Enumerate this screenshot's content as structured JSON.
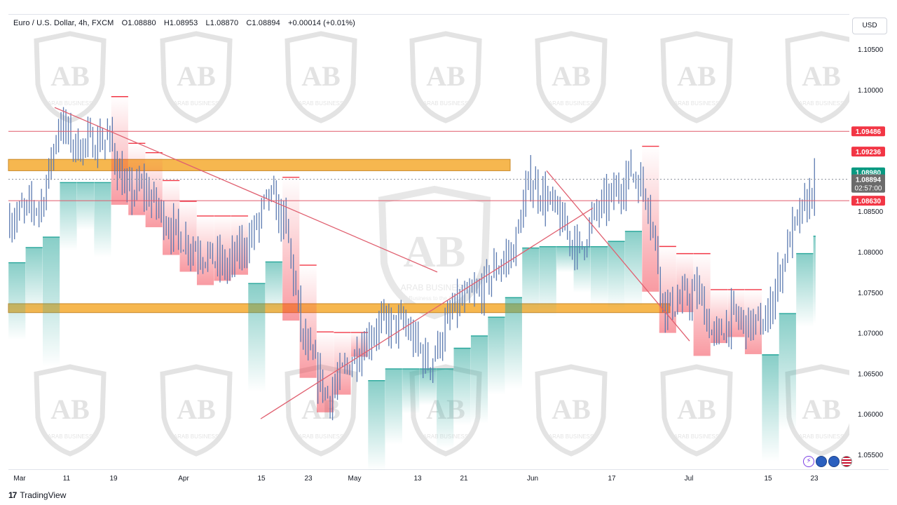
{
  "legend": {
    "symbol": "Euro / U.S. Dollar, 4h, FXCM",
    "open": "O1.08880",
    "high": "H1.08953",
    "low": "L1.08870",
    "close": "C1.08894",
    "change": "+0.00014 (+0.01%)"
  },
  "currency_button": "USD",
  "branding": {
    "tradingview": "TradingView",
    "tv_mark": "17"
  },
  "watermark": {
    "text": "ARAB BUSINESS",
    "subtext": "Business to the Arab"
  },
  "colors": {
    "candle": "#5b7ab0",
    "support_zone": "#f6b74f",
    "resistance_line": "#e05a6a",
    "trend_line": "#e06070",
    "band_bull": "#26a69a",
    "band_bear": "#f23645",
    "last_price_bg": "#6b6b6b"
  },
  "chart_data": {
    "type": "candlestick",
    "symbol": "EURUSD",
    "timeframe": "4h",
    "ylim": [
      1.0545,
      1.1075
    ],
    "x_ticks": [
      "Mar",
      "11",
      "19",
      "Apr",
      "15",
      "23",
      "May",
      "13",
      "21",
      "Jun",
      "17",
      "Jul",
      "15",
      "23"
    ],
    "y_ticks": [
      "1.10500",
      "1.10000",
      "1.09500",
      "1.09000",
      "1.08500",
      "1.08000",
      "1.07500",
      "1.07000",
      "1.06500",
      "1.06000",
      "1.05500"
    ],
    "y_tick_values": [
      1.105,
      1.1,
      1.095,
      1.09,
      1.085,
      1.08,
      1.075,
      1.07,
      1.065,
      1.06,
      1.055
    ],
    "price_path_t": [
      0,
      0.04,
      0.06,
      0.08,
      0.12,
      0.14,
      0.16,
      0.2,
      0.23,
      0.26,
      0.29,
      0.31,
      0.33,
      0.35,
      0.38,
      0.41,
      0.44,
      0.47,
      0.5,
      0.53,
      0.56,
      0.58,
      0.6,
      0.62,
      0.65,
      0.66,
      0.68,
      0.69,
      0.7,
      0.72,
      0.74,
      0.76,
      0.78,
      0.8,
      0.82,
      0.84,
      0.86,
      0.88,
      0.9,
      0.91,
      0.93,
      0.94,
      0.95,
      0.96
    ],
    "price_path_y": [
      1.084,
      1.086,
      1.096,
      1.093,
      1.094,
      1.087,
      1.088,
      1.082,
      1.08,
      1.078,
      1.082,
      1.087,
      1.083,
      1.069,
      1.062,
      1.067,
      1.071,
      1.071,
      1.066,
      1.073,
      1.075,
      1.078,
      1.08,
      1.089,
      1.085,
      1.083,
      1.08,
      1.083,
      1.085,
      1.087,
      1.09,
      1.087,
      1.073,
      1.074,
      1.075,
      1.069,
      1.072,
      1.071,
      1.071,
      1.075,
      1.082,
      1.084,
      1.086,
      1.089
    ],
    "levels": [
      {
        "name": "resistance",
        "value": 1.09486,
        "label": "1.09486"
      },
      {
        "name": "level-2",
        "value": 1.09236,
        "label": "1.09236"
      },
      {
        "name": "band",
        "value": 1.0898,
        "label": "1.08980"
      },
      {
        "name": "last",
        "value": 1.08894,
        "label": "1.08894",
        "countdown": "02:57:00"
      },
      {
        "name": "support",
        "value": 1.0863,
        "label": "1.08630"
      }
    ],
    "zones": [
      {
        "name": "upper-zone",
        "y_top": 1.0914,
        "y_bottom": 1.09
      },
      {
        "name": "lower-zone",
        "y_top": 1.0736,
        "y_bottom": 1.0725
      }
    ],
    "trendlines": [
      {
        "name": "descending-march",
        "t0": 0.055,
        "y0": 1.0978,
        "t1": 0.51,
        "y1": 1.0775
      },
      {
        "name": "ascending-april",
        "t0": 0.3,
        "y0": 1.0594,
        "t1": 0.695,
        "y1": 1.0854
      },
      {
        "name": "descending-june",
        "t0": 0.64,
        "y0": 1.09,
        "t1": 0.81,
        "y1": 1.069
      }
    ],
    "grid": false,
    "legend": "top-left"
  }
}
